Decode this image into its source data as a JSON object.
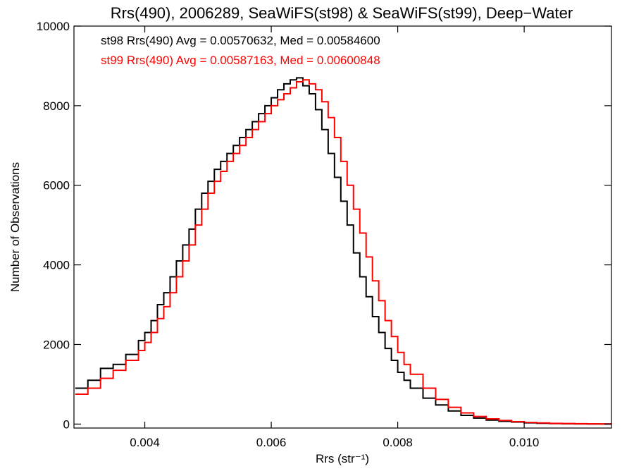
{
  "chart_data": {
    "type": "line",
    "title": "Rrs(490), 2006289, SeaWiFS(st98) & SeaWiFS(st99), Deep−Water",
    "xlabel": "Rrs (str⁻¹)",
    "ylabel": "Number of Observations",
    "xlim": [
      0.00288,
      0.01138
    ],
    "ylim": [
      -100,
      10000
    ],
    "x_ticks": [
      0.004,
      0.006,
      0.008,
      0.01
    ],
    "x_tick_labels": [
      "0.004",
      "0.006",
      "0.008",
      "0.010"
    ],
    "y_ticks": [
      0,
      2000,
      4000,
      6000,
      8000,
      10000
    ],
    "y_tick_labels": [
      "0",
      "2000",
      "4000",
      "6000",
      "8000",
      "10000"
    ],
    "step_style": "histogram",
    "grid": false,
    "legend_position": "top-left",
    "series": [
      {
        "name": "st98 Rrs(490) Avg = 0.00570632, Med = 0.00584600",
        "color": "#000000",
        "x": [
          0.0029,
          0.0031,
          0.0033,
          0.0035,
          0.0037,
          0.0039,
          0.004,
          0.0041,
          0.0042,
          0.0043,
          0.0044,
          0.0045,
          0.0046,
          0.0047,
          0.0048,
          0.0049,
          0.005,
          0.0051,
          0.0052,
          0.0053,
          0.0054,
          0.0055,
          0.0056,
          0.0057,
          0.0058,
          0.0059,
          0.006,
          0.0061,
          0.0062,
          0.0063,
          0.0064,
          0.0065,
          0.0066,
          0.0067,
          0.0068,
          0.0069,
          0.007,
          0.0071,
          0.0072,
          0.0073,
          0.0074,
          0.0075,
          0.0076,
          0.0077,
          0.0078,
          0.0079,
          0.008,
          0.0081,
          0.0082,
          0.0084,
          0.0086,
          0.0088,
          0.009,
          0.0092,
          0.0094,
          0.0096,
          0.0098,
          0.01,
          0.0102,
          0.0104,
          0.0106,
          0.0108,
          0.011,
          0.0112,
          0.01138
        ],
        "values": [
          900,
          1100,
          1400,
          1500,
          1750,
          2100,
          2300,
          2600,
          3000,
          3300,
          3700,
          4100,
          4500,
          4900,
          5400,
          5800,
          6100,
          6400,
          6600,
          6800,
          7000,
          7200,
          7400,
          7600,
          7800,
          8000,
          8200,
          8400,
          8550,
          8650,
          8700,
          8500,
          8300,
          7900,
          7400,
          6800,
          6200,
          5600,
          5000,
          4300,
          3700,
          3200,
          2700,
          2300,
          1900,
          1600,
          1300,
          1100,
          900,
          650,
          480,
          330,
          220,
          150,
          100,
          70,
          50,
          30,
          20,
          12,
          8,
          5,
          3,
          2,
          1
        ]
      },
      {
        "name": "st99 Rrs(490) Avg = 0.00587163, Med = 0.00600848",
        "color": "#ff0000",
        "x": [
          0.0029,
          0.0031,
          0.0033,
          0.0035,
          0.0037,
          0.0039,
          0.004,
          0.0041,
          0.0042,
          0.0043,
          0.0044,
          0.0045,
          0.0046,
          0.0047,
          0.0048,
          0.0049,
          0.005,
          0.0051,
          0.0052,
          0.0053,
          0.0054,
          0.0055,
          0.0056,
          0.0057,
          0.0058,
          0.0059,
          0.006,
          0.0061,
          0.0062,
          0.0063,
          0.0064,
          0.0065,
          0.0066,
          0.0067,
          0.0068,
          0.0069,
          0.007,
          0.0071,
          0.0072,
          0.0073,
          0.0074,
          0.0075,
          0.0076,
          0.0077,
          0.0078,
          0.0079,
          0.008,
          0.0081,
          0.0082,
          0.0084,
          0.0086,
          0.0088,
          0.009,
          0.0092,
          0.0094,
          0.0096,
          0.0098,
          0.01,
          0.0102,
          0.0104,
          0.0106,
          0.0108,
          0.011,
          0.0112,
          0.01138
        ],
        "values": [
          750,
          900,
          1150,
          1350,
          1600,
          1850,
          2050,
          2300,
          2650,
          2950,
          3300,
          3700,
          4100,
          4500,
          5000,
          5400,
          5800,
          6100,
          6350,
          6600,
          6800,
          7000,
          7200,
          7400,
          7600,
          7800,
          8000,
          8150,
          8300,
          8450,
          8600,
          8650,
          8550,
          8400,
          8100,
          7700,
          7200,
          6600,
          6000,
          5400,
          4800,
          4200,
          3600,
          3100,
          2600,
          2200,
          1800,
          1500,
          1250,
          900,
          620,
          420,
          280,
          190,
          130,
          90,
          60,
          40,
          28,
          18,
          12,
          8,
          5,
          3,
          2
        ]
      }
    ]
  }
}
